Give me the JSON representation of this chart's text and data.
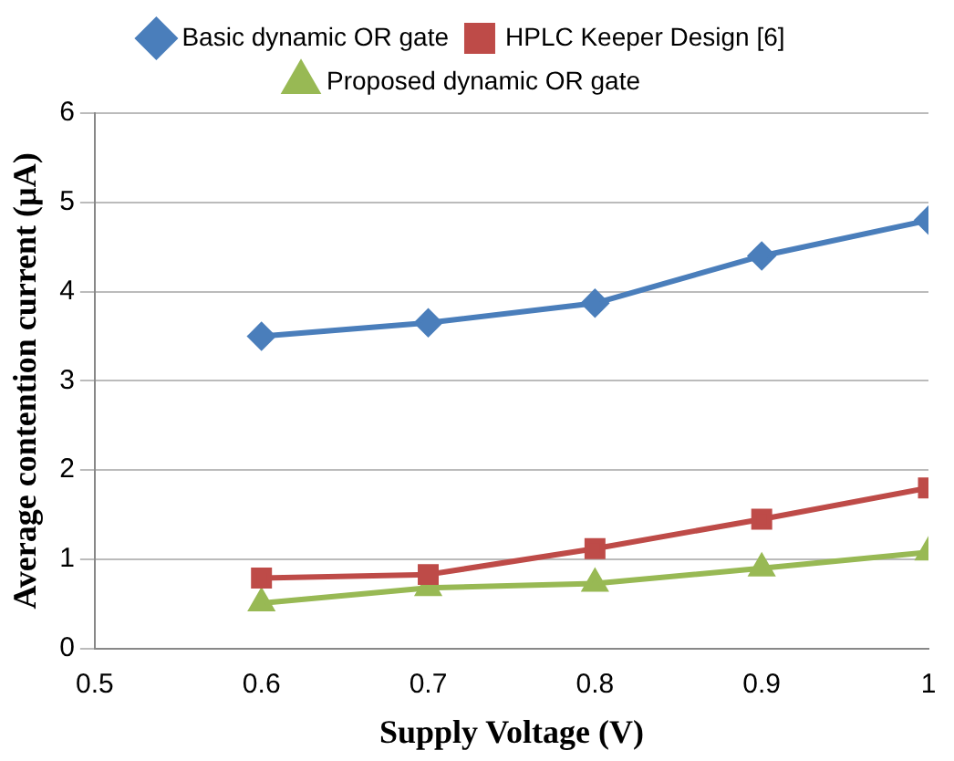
{
  "chart_data": {
    "type": "line",
    "xlabel": "Supply Voltage (V)",
    "ylabel": "Average contention current (µA)",
    "x": [
      0.6,
      0.7,
      0.8,
      0.9,
      1.0
    ],
    "series": [
      {
        "name": "Basic dynamic OR gate",
        "color": "#4a7ebb",
        "marker": "diamond",
        "values": [
          3.5,
          3.65,
          3.87,
          4.4,
          4.8
        ]
      },
      {
        "name": "HPLC Keeper Design [6]",
        "color": "#be4b48",
        "marker": "square",
        "values": [
          0.79,
          0.83,
          1.12,
          1.45,
          1.8
        ]
      },
      {
        "name": "Proposed dynamic OR gate",
        "color": "#98b954",
        "marker": "triangle",
        "values": [
          0.51,
          0.68,
          0.73,
          0.9,
          1.08
        ]
      }
    ],
    "xlim": [
      0.5,
      1
    ],
    "xticks": [
      0.5,
      0.6,
      0.7,
      0.8,
      0.9,
      1
    ],
    "ylim": [
      0,
      6
    ],
    "yticks": [
      0,
      1,
      2,
      3,
      4,
      5,
      6
    ],
    "grid": "y",
    "legend": "top",
    "line_style": "solid"
  }
}
